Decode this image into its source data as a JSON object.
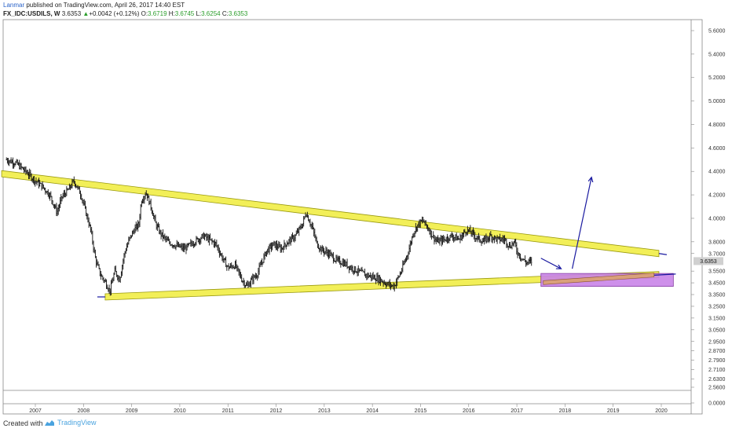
{
  "header": {
    "author": "Lanmar",
    "published_text": " published on TradingView.com, April 26, 2017 14:40 EST",
    "symbol": "FX_IDC:USDILS, W",
    "last_price": "3.6353",
    "change_arrow": "▲",
    "change": "+0.0042 (+0.12%)",
    "open_label": "O:",
    "open": "3.6719",
    "high_label": "H:",
    "high": "3.6745",
    "low_label": "L:",
    "low": "3.6254",
    "close_label": "C:",
    "close": "3.6353"
  },
  "footer": {
    "created_with": "Created with",
    "brand": "TradingView"
  },
  "colors": {
    "channel_fill": "#f2ef58",
    "channel_stroke": "#9a9a10",
    "arrow": "#1a1aa0",
    "box_fill": "#c984e8",
    "box_stroke": "#7a2a9a",
    "inner_bar": "#d9a07a",
    "price_badge": "#d0d0d0",
    "candles": "#111111"
  },
  "chart_data": {
    "type": "line",
    "title": "FX_IDC:USDILS, W",
    "xlabel": "",
    "ylabel": "",
    "ylim": [
      0.0,
      5.7
    ],
    "y_scale": "log",
    "grid": false,
    "x_ticks": [
      "2007",
      "2008",
      "2009",
      "2010",
      "2011",
      "2012",
      "2013",
      "2014",
      "2015",
      "2016",
      "2017",
      "2018",
      "2019",
      "2020"
    ],
    "y_ticks": [
      "5.6000",
      "5.4000",
      "5.2000",
      "5.0000",
      "4.8000",
      "4.6000",
      "4.4000",
      "4.2000",
      "4.0000",
      "3.8000",
      "3.7000",
      "3.6353",
      "3.5500",
      "3.4500",
      "3.3500",
      "3.2500",
      "3.1500",
      "3.0500",
      "2.9500",
      "2.8700",
      "2.7900",
      "2.7100",
      "2.6300",
      "2.5600",
      "0.0000"
    ],
    "current_price": "3.6353",
    "series": [
      {
        "points": [
          [
            2006.4,
            4.5
          ],
          [
            2006.6,
            4.47
          ],
          [
            2006.8,
            4.4
          ],
          [
            2007.0,
            4.32
          ],
          [
            2007.15,
            4.27
          ],
          [
            2007.3,
            4.2
          ],
          [
            2007.45,
            4.05
          ],
          [
            2007.55,
            4.18
          ],
          [
            2007.7,
            4.25
          ],
          [
            2007.8,
            4.32
          ],
          [
            2007.95,
            4.2
          ],
          [
            2008.05,
            4.05
          ],
          [
            2008.15,
            3.9
          ],
          [
            2008.25,
            3.65
          ],
          [
            2008.35,
            3.52
          ],
          [
            2008.45,
            3.46
          ],
          [
            2008.55,
            3.38
          ],
          [
            2008.65,
            3.55
          ],
          [
            2008.75,
            3.48
          ],
          [
            2008.85,
            3.7
          ],
          [
            2008.95,
            3.82
          ],
          [
            2009.05,
            3.9
          ],
          [
            2009.15,
            3.95
          ],
          [
            2009.2,
            4.15
          ],
          [
            2009.3,
            4.22
          ],
          [
            2009.4,
            4.1
          ],
          [
            2009.5,
            3.95
          ],
          [
            2009.6,
            3.87
          ],
          [
            2009.75,
            3.8
          ],
          [
            2009.9,
            3.77
          ],
          [
            2010.1,
            3.74
          ],
          [
            2010.3,
            3.8
          ],
          [
            2010.5,
            3.85
          ],
          [
            2010.6,
            3.82
          ],
          [
            2010.75,
            3.78
          ],
          [
            2010.9,
            3.65
          ],
          [
            2011.0,
            3.58
          ],
          [
            2011.15,
            3.6
          ],
          [
            2011.3,
            3.47
          ],
          [
            2011.4,
            3.42
          ],
          [
            2011.5,
            3.48
          ],
          [
            2011.6,
            3.52
          ],
          [
            2011.7,
            3.62
          ],
          [
            2011.8,
            3.72
          ],
          [
            2011.95,
            3.78
          ],
          [
            2012.1,
            3.74
          ],
          [
            2012.25,
            3.8
          ],
          [
            2012.4,
            3.85
          ],
          [
            2012.55,
            3.95
          ],
          [
            2012.62,
            4.05
          ],
          [
            2012.75,
            3.92
          ],
          [
            2012.85,
            3.78
          ],
          [
            2012.95,
            3.73
          ],
          [
            2013.1,
            3.7
          ],
          [
            2013.25,
            3.64
          ],
          [
            2013.4,
            3.62
          ],
          [
            2013.55,
            3.58
          ],
          [
            2013.7,
            3.55
          ],
          [
            2013.85,
            3.52
          ],
          [
            2014.0,
            3.5
          ],
          [
            2014.15,
            3.48
          ],
          [
            2014.3,
            3.44
          ],
          [
            2014.45,
            3.42
          ],
          [
            2014.6,
            3.55
          ],
          [
            2014.75,
            3.72
          ],
          [
            2014.85,
            3.88
          ],
          [
            2014.95,
            3.95
          ],
          [
            2015.05,
            3.98
          ],
          [
            2015.15,
            3.92
          ],
          [
            2015.25,
            3.85
          ],
          [
            2015.35,
            3.8
          ],
          [
            2015.5,
            3.82
          ],
          [
            2015.65,
            3.85
          ],
          [
            2015.8,
            3.82
          ],
          [
            2015.95,
            3.9
          ],
          [
            2016.05,
            3.88
          ],
          [
            2016.15,
            3.84
          ],
          [
            2016.3,
            3.8
          ],
          [
            2016.45,
            3.85
          ],
          [
            2016.6,
            3.82
          ],
          [
            2016.75,
            3.82
          ],
          [
            2016.85,
            3.76
          ],
          [
            2016.95,
            3.8
          ],
          [
            2017.0,
            3.72
          ],
          [
            2017.1,
            3.66
          ],
          [
            2017.2,
            3.62
          ],
          [
            2017.32,
            3.635
          ]
        ]
      }
    ],
    "annotations": [
      {
        "type": "channel-upper",
        "from": [
          2006.3,
          4.38
        ],
        "to": [
          2019.95,
          3.7
        ]
      },
      {
        "type": "channel-lower",
        "from": [
          2008.45,
          3.33
        ],
        "to": [
          2019.95,
          3.52
        ]
      },
      {
        "type": "arrow-up",
        "from": [
          2018.15,
          3.57
        ],
        "to": [
          2018.55,
          4.35
        ]
      },
      {
        "type": "arrow-down",
        "from": [
          2017.5,
          3.66
        ],
        "to": [
          2017.92,
          3.57
        ]
      },
      {
        "type": "target-box",
        "from": [
          2017.5,
          3.53
        ],
        "to": [
          2020.25,
          3.42
        ]
      }
    ]
  }
}
